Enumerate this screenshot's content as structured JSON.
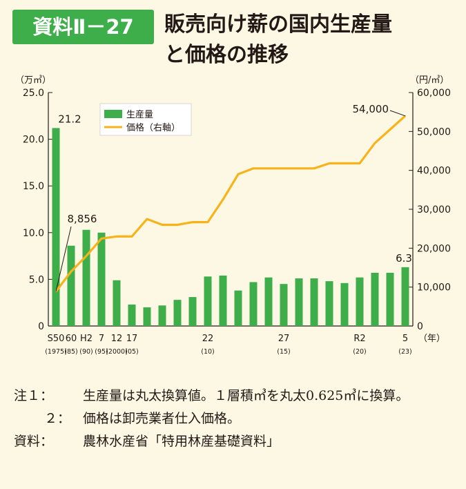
{
  "header": {
    "badge": "資料Ⅱ－27",
    "title_lines": [
      "販売向け薪の国内生産量",
      "と価格の推移"
    ]
  },
  "colors": {
    "bar": "#3eae4b",
    "line": "#f7b319",
    "axis": "#231815",
    "background": "#fdf8e4",
    "badge": "#3eae4b"
  },
  "chart_data": {
    "type": "bar+line",
    "left_axis_unit": "（万㎥）",
    "right_axis_unit": "（円/㎥）",
    "x_axis_unit": "（年）",
    "ylim_left": [
      0,
      25
    ],
    "ylim_right": [
      0,
      60000
    ],
    "yticks_left": [
      "25.0",
      "20.0",
      "15.0",
      "10.0",
      "5.0",
      "0"
    ],
    "yticks_right": [
      "60,000",
      "50,000",
      "40,000",
      "30,000",
      "20,000",
      "10,000",
      "0"
    ],
    "x_tick_labels": [
      {
        "index": 0,
        "main": "S50",
        "sub": "(1975)"
      },
      {
        "index": 1,
        "main": "60",
        "sub": "(85)"
      },
      {
        "index": 2,
        "main": "H2",
        "sub": "(90)"
      },
      {
        "index": 3,
        "main": "7",
        "sub": "(95)"
      },
      {
        "index": 4,
        "main": "12",
        "sub": "(2000)"
      },
      {
        "index": 5,
        "main": "17",
        "sub": "(05)"
      },
      {
        "index": 10,
        "main": "22",
        "sub": "(10)"
      },
      {
        "index": 15,
        "main": "27",
        "sub": "(15)"
      },
      {
        "index": 20,
        "main": "R2",
        "sub": "(20)"
      },
      {
        "index": 23,
        "main": "5",
        "sub": "(23)"
      }
    ],
    "legend": {
      "placement": "top-left",
      "items": [
        "生産量",
        "価格（右軸）"
      ]
    },
    "series": [
      {
        "name": "生産量",
        "kind": "bar",
        "axis": "left",
        "values": [
          21.2,
          8.6,
          10.3,
          10.0,
          4.9,
          2.3,
          2.0,
          2.2,
          2.8,
          3.1,
          5.3,
          5.4,
          3.8,
          4.7,
          5.2,
          4.5,
          5.1,
          5.1,
          4.8,
          4.6,
          5.2,
          5.7,
          5.7,
          6.3
        ]
      },
      {
        "name": "価格（右軸）",
        "kind": "line",
        "axis": "right",
        "values": [
          8856,
          14000,
          18000,
          22500,
          23000,
          23000,
          27500,
          26000,
          26000,
          26700,
          26700,
          32500,
          39000,
          40500,
          40500,
          40500,
          40500,
          40500,
          41800,
          41800,
          41800,
          47000,
          50500,
          54000
        ]
      }
    ],
    "annotations": [
      "21.2",
      "8,856",
      "54,000",
      "6.3"
    ]
  },
  "notes": {
    "note1_head": "注１：",
    "note1_body": "生産量は丸太換算値。１層積㎥を丸太0.625㎥に換算。",
    "note2_head": "２：",
    "note2_body": "価格は卸売業者仕入価格。",
    "source_head": "資料：",
    "source_body": "農林水産省「特用林産基礎資料」"
  }
}
